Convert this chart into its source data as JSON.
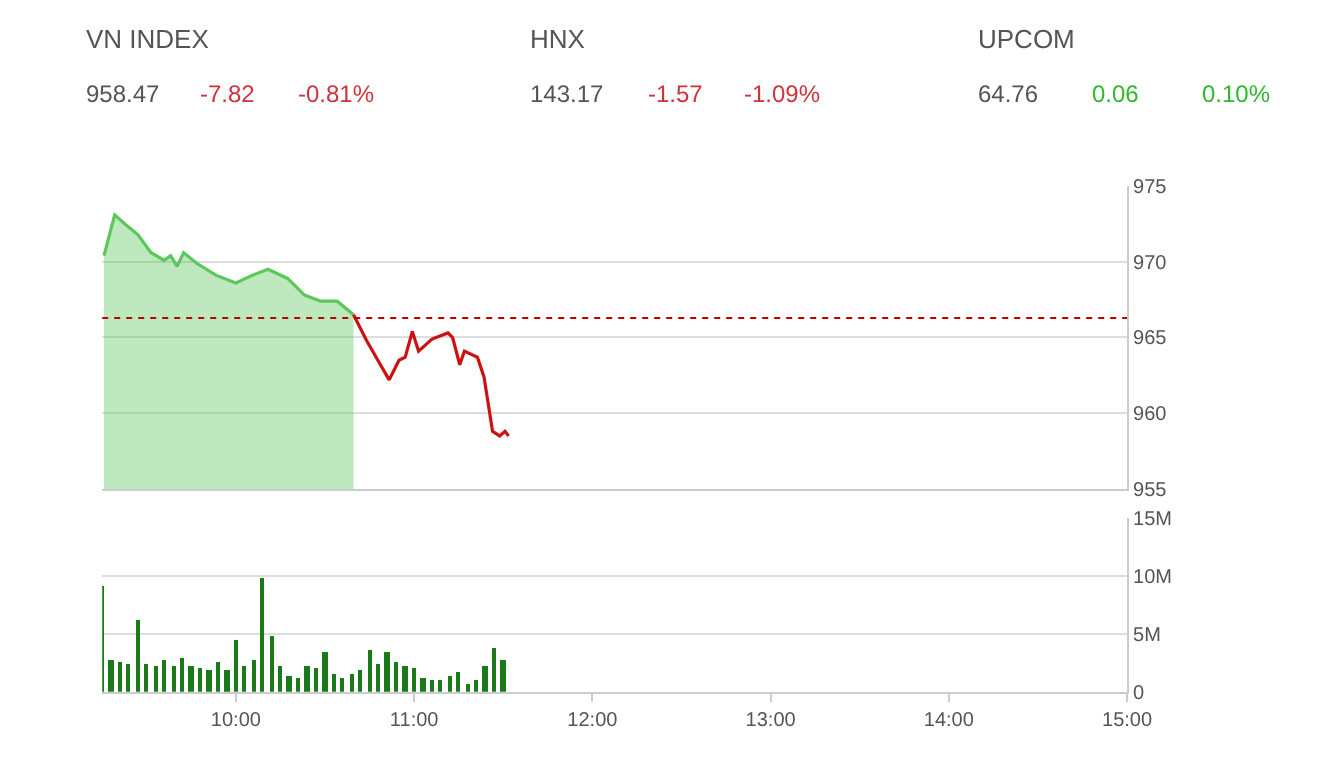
{
  "chart_data": [
    {
      "type": "other",
      "annotations": [
        "VN INDEX",
        "958.47",
        "-7.82",
        "-0.81%",
        "HNX",
        "143.17",
        "-1.57",
        "-1.09%",
        "UPCOM",
        "64.76",
        "0.06",
        "0.10%"
      ],
      "colors": [
        "#555555",
        "#555555",
        "#d0313a",
        "#d0313a",
        "#555555",
        "#555555",
        "#d0313a",
        "#d0313a",
        "#555555",
        "#555555",
        "#2eb82e",
        "#2eb82e"
      ]
    },
    {
      "type": "line",
      "xlim": [
        9.25,
        15
      ],
      "ylim": [
        955,
        975
      ],
      "yticks": [
        955,
        960,
        965,
        970,
        975
      ],
      "grid": "y",
      "tick_labels": "y",
      "ref_lines": [
        {
          "axis": "y",
          "value": 966.29,
          "color": "#c00000",
          "line_style": "dotted"
        }
      ],
      "series": [
        {
          "type": "area",
          "color": "#5cc85c",
          "x": [
            9.26,
            9.32,
            9.377,
            9.45,
            9.524,
            9.597,
            9.634,
            9.67,
            9.707,
            9.78,
            9.89,
            10.0,
            10.09,
            10.18,
            10.29,
            10.385,
            10.476,
            10.568,
            10.66
          ],
          "values": [
            970.4,
            973.1,
            972.5,
            971.8,
            970.6,
            970.1,
            970.4,
            969.7,
            970.6,
            969.9,
            969.1,
            968.6,
            969.1,
            969.5,
            968.9,
            967.8,
            967.4,
            967.4,
            966.5
          ]
        },
        {
          "type": "line",
          "color": "#cc1111",
          "x": [
            10.66,
            10.733,
            10.806,
            10.86,
            10.915,
            10.95,
            10.99,
            11.025,
            11.1,
            11.19,
            11.216,
            11.256,
            11.282,
            11.355,
            11.392,
            11.44,
            11.48,
            11.51,
            11.53
          ],
          "values": [
            966.5,
            964.8,
            963.3,
            962.2,
            963.5,
            963.7,
            965.4,
            964.1,
            964.9,
            965.3,
            965.0,
            963.2,
            964.1,
            963.7,
            962.4,
            958.8,
            958.5,
            958.8,
            958.5
          ]
        }
      ]
    },
    {
      "type": "bar",
      "color": "#1a7a1a",
      "xlim": [
        9.25,
        15
      ],
      "xticks": [
        {
          "value": 10,
          "label": "10:00"
        },
        {
          "value": 11,
          "label": "11:00"
        },
        {
          "value": 12,
          "label": "12:00"
        },
        {
          "value": 13,
          "label": "13:00"
        },
        {
          "value": 14,
          "label": "14:00"
        },
        {
          "value": 15,
          "label": "15:00"
        }
      ],
      "ylim": [
        0,
        15
      ],
      "yticks": [
        0,
        {
          "value": 5,
          "label": "5M"
        },
        {
          "value": 10,
          "label": "10M"
        },
        {
          "value": 15,
          "label": "15M"
        }
      ],
      "grid": "y",
      "x": [
        9.25,
        9.3,
        9.35,
        9.4,
        9.45,
        9.5,
        9.55,
        9.6,
        9.65,
        9.7,
        9.75,
        9.8,
        9.85,
        9.9,
        9.95,
        10.0,
        10.05,
        10.1,
        10.15,
        10.2,
        10.25,
        10.3,
        10.35,
        10.4,
        10.45,
        10.5,
        10.55,
        10.6,
        10.65,
        10.7,
        10.75,
        10.8,
        10.85,
        10.9,
        10.95,
        11.0,
        11.05,
        11.1,
        11.15,
        11.2,
        11.25,
        11.3,
        11.35,
        11.4,
        11.45,
        11.5
      ],
      "values": [
        9.2,
        2.7,
        2.6,
        2.4,
        6.2,
        2.4,
        2.2,
        2.8,
        2.3,
        2.9,
        2.2,
        2.0,
        1.8,
        2.5,
        1.9,
        4.4,
        2.3,
        2.8,
        9.8,
        4.8,
        2.2,
        1.3,
        1.2,
        2.3,
        2.0,
        3.4,
        1.5,
        1.2,
        1.6,
        1.8,
        3.6,
        2.4,
        3.5,
        2.5,
        2.3,
        2.0,
        1.2,
        1.0,
        1.1,
        1.3,
        1.7,
        0.7,
        1.0,
        2.2,
        3.8,
        2.8
      ]
    }
  ]
}
